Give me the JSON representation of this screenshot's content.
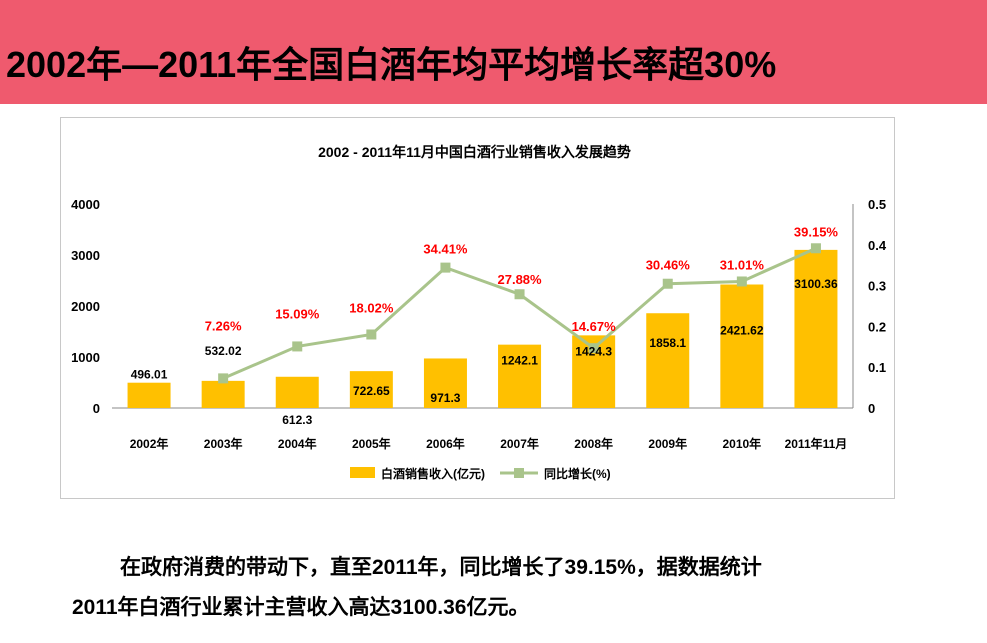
{
  "header": {
    "title": "2002年—2011年全国白酒年均平均增长率超30%"
  },
  "chart_data": {
    "type": "bar+line",
    "title": "2002 - 2011年11月中国白酒行业销售收入发展趋势",
    "categories": [
      "2002年",
      "2003年",
      "2004年",
      "2005年",
      "2006年",
      "2007年",
      "2008年",
      "2009年",
      "2010年",
      "2011年11月"
    ],
    "series": [
      {
        "name": "白酒销售收入(亿元)",
        "type": "bar",
        "axis": "left",
        "values": [
          496.01,
          532.02,
          612.3,
          722.65,
          971.3,
          1242.1,
          1424.3,
          1858.1,
          2421.62,
          3100.36
        ],
        "labels": [
          "496.01",
          "532.02",
          "612.3",
          "722.65",
          "971.3",
          "1242.1",
          "1424.3",
          "1858.1",
          "2421.62",
          "3100.36"
        ],
        "color": "#ffc000"
      },
      {
        "name": "同比增长(%)",
        "type": "line",
        "axis": "right",
        "values": [
          null,
          0.0726,
          0.1509,
          0.1802,
          0.3441,
          0.2788,
          0.1467,
          0.3046,
          0.3101,
          0.3915
        ],
        "labels": [
          "",
          "7.26%",
          "15.09%",
          "18.02%",
          "34.41%",
          "27.88%",
          "14.67%",
          "30.46%",
          "31.01%",
          "39.15%"
        ],
        "color": "#a9c48b",
        "label_color": "#ff0000"
      }
    ],
    "y_left": {
      "min": 0,
      "max": 4000,
      "ticks": [
        "0",
        "1000",
        "2000",
        "3000",
        "4000"
      ]
    },
    "y_right": {
      "min": 0,
      "max": 0.5,
      "ticks": [
        "0",
        "0.1",
        "0.2",
        "0.3",
        "0.4",
        "0.5"
      ]
    },
    "grid": false,
    "legend": "bottom-center"
  },
  "body": {
    "line1": "在政府消费的带动下，直至2011年，同比增长了39.15%，据数据统计",
    "line2": "2011年白酒行业累计主营收入高达3100.36亿元。"
  }
}
